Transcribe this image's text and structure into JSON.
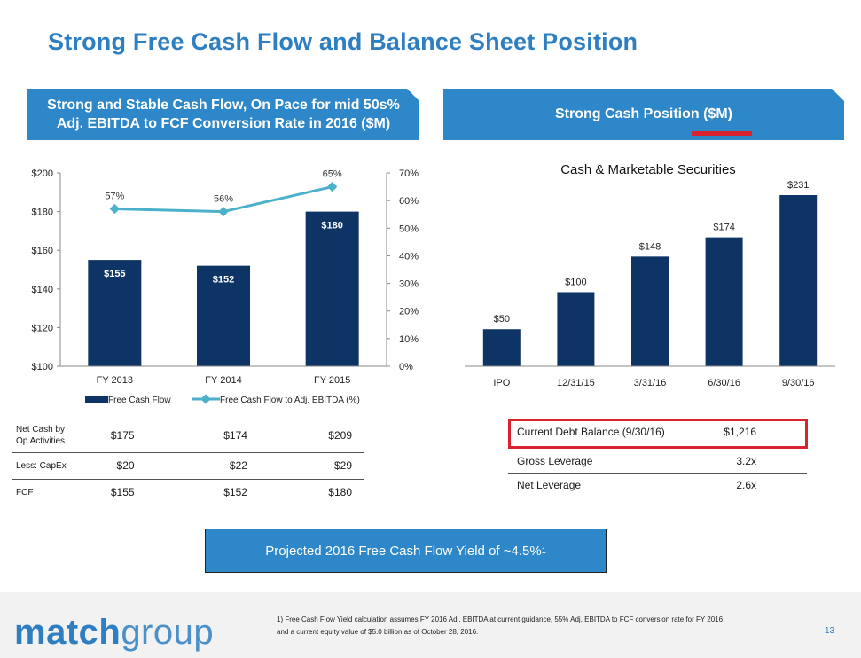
{
  "page": {
    "title": "Strong Free Cash Flow and Balance Sheet Position",
    "page_number": "13"
  },
  "left_banner": {
    "line1": "Strong and Stable Cash Flow, On Pace for mid 50s%",
    "line2": "Adj. EBITDA to FCF Conversion Rate in 2016 ($M)"
  },
  "right_banner": {
    "title": "Strong Cash Position ($M)"
  },
  "colors": {
    "bar": "#0e3466",
    "line": "#4bb0c9",
    "banner": "#2e87c8",
    "title": "#2e7fc1",
    "highlight": "#d9232e"
  },
  "chart_data": [
    {
      "id": "fcf-chart",
      "type": "bar",
      "title": "",
      "categories": [
        "FY 2013",
        "FY 2014",
        "FY 2015"
      ],
      "series": [
        {
          "name": "Free Cash Flow",
          "type": "bar",
          "axis": "left",
          "values": [
            155,
            152,
            180
          ],
          "labels": [
            "$155",
            "$152",
            "$180"
          ]
        },
        {
          "name": "Free Cash Flow to Adj. EBITDA (%)",
          "type": "line",
          "axis": "right",
          "values": [
            57,
            56,
            65
          ],
          "labels": [
            "57%",
            "56%",
            "65%"
          ]
        }
      ],
      "y_left": {
        "min": 100,
        "max": 200,
        "ticks": [
          100,
          120,
          140,
          160,
          180,
          200
        ],
        "tick_labels": [
          "$100",
          "$120",
          "$140",
          "$160",
          "$180",
          "$200"
        ]
      },
      "y_right": {
        "min": 0,
        "max": 70,
        "ticks": [
          0,
          10,
          20,
          30,
          40,
          50,
          60,
          70
        ],
        "tick_labels": [
          "0%",
          "10%",
          "20%",
          "30%",
          "40%",
          "50%",
          "60%",
          "70%"
        ]
      },
      "legend": [
        "Free Cash Flow",
        "Free Cash Flow to Adj. EBITDA (%)"
      ],
      "legend_position": "bottom"
    },
    {
      "id": "cash-chart",
      "type": "bar",
      "title": "Cash & Marketable Securities",
      "categories": [
        "IPO",
        "12/31/15",
        "3/31/16",
        "6/30/16",
        "9/30/16"
      ],
      "values": [
        50,
        100,
        148,
        174,
        231
      ],
      "labels": [
        "$50",
        "$100",
        "$148",
        "$174",
        "$231"
      ],
      "ylim": [
        0,
        231
      ]
    }
  ],
  "cash_table": {
    "rows": [
      {
        "label_line1": "Net Cash by",
        "label_line2": "Op Activities",
        "values": [
          "$175",
          "$174",
          "$209"
        ]
      },
      {
        "label_line1": "Less: CapEx",
        "label_line2": "",
        "values": [
          "$20",
          "$22",
          "$29"
        ]
      },
      {
        "label_line1": "FCF",
        "label_line2": "",
        "values": [
          "$155",
          "$152",
          "$180"
        ]
      }
    ]
  },
  "debt": {
    "rows": [
      {
        "label": "Current Debt Balance (9/30/16)",
        "value": "$1,216"
      },
      {
        "label": "Gross Leverage",
        "value": "3.2x"
      },
      {
        "label": "Net Leverage",
        "value": "2.6x"
      }
    ]
  },
  "projected": {
    "text": "Projected 2016 Free Cash Flow Yield of ~4.5%",
    "superscript": "1"
  },
  "footer": {
    "logo_part1": "match",
    "logo_part2": "group",
    "footnote_line1": "1)  Free Cash Flow Yield calculation assumes FY 2016 Adj. EBITDA at current guidance, 55% Adj. EBITDA to FCF conversion rate for FY 2016",
    "footnote_line2": "and a current equity value of $5.0 billion as of October 28, 2016."
  }
}
